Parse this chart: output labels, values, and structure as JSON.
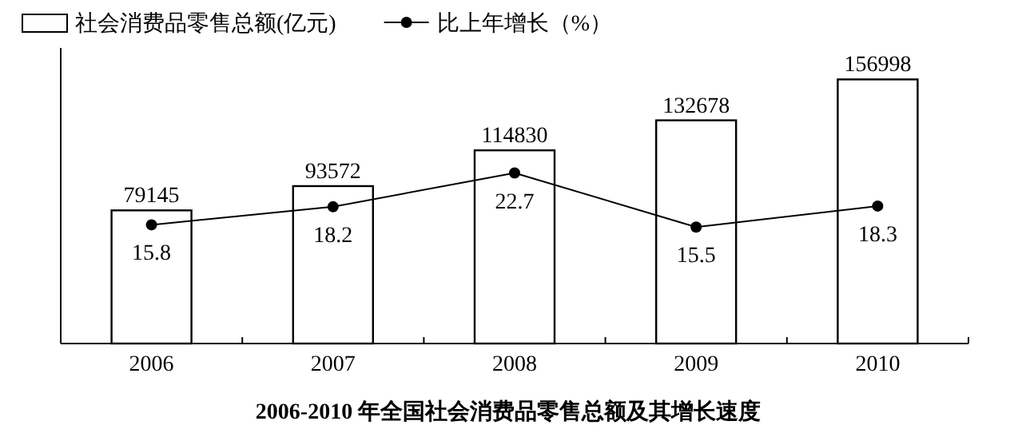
{
  "chart_data": {
    "type": "bar",
    "title": "2006-2010 年全国社会消费品零售总额及其增长速度",
    "categories": [
      "2006",
      "2007",
      "2008",
      "2009",
      "2010"
    ],
    "series": [
      {
        "name": "社会消费品零售总额(亿元)",
        "color": "#ffffff",
        "values": [
          79145,
          93572,
          114830,
          132678,
          156998
        ]
      },
      {
        "name": "比上年增长（%）",
        "type": "line",
        "axis": "y2",
        "color": "#000000",
        "values": [
          15.8,
          18.2,
          22.7,
          15.5,
          18.3
        ]
      }
    ],
    "data_labels": true,
    "legend": "top left",
    "marker": "circle",
    "line_style": "solid",
    "grid": false
  }
}
